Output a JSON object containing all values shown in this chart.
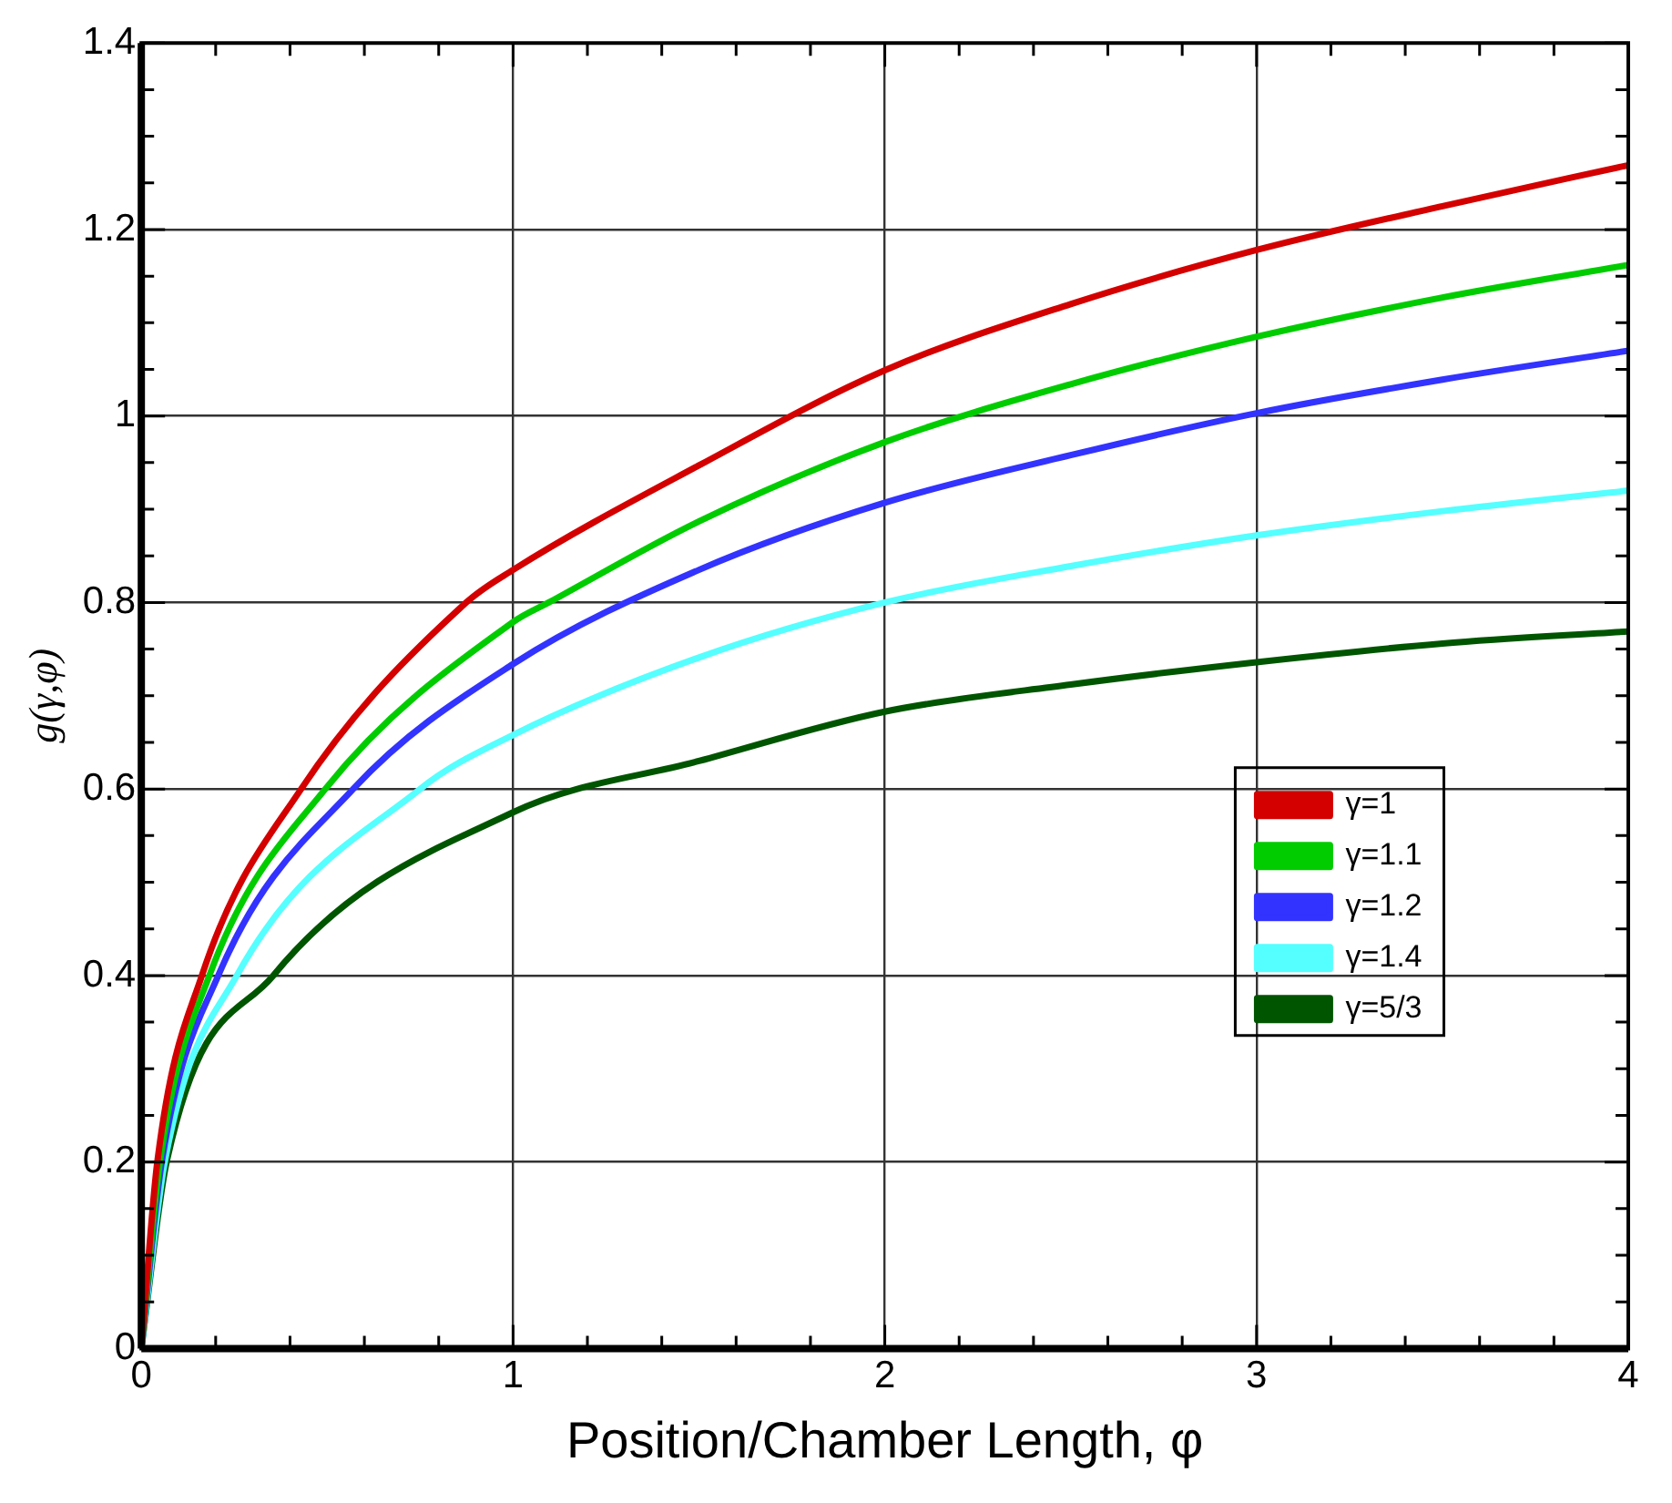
{
  "chart_data": {
    "type": "line",
    "xlabel": "Position/Chamber Length, φ",
    "ylabel": "g(γ,φ)",
    "xlim": [
      0,
      4
    ],
    "ylim": [
      0,
      1.4
    ],
    "xticks": [
      0,
      {
        "value": 0.2,
        "label": null
      },
      {
        "value": 0.4,
        "label": null
      },
      {
        "value": 0.6,
        "label": null
      },
      {
        "value": 0.8,
        "label": null
      },
      1,
      {
        "value": 1.2,
        "label": null
      },
      {
        "value": 1.4,
        "label": null
      },
      {
        "value": 1.6,
        "label": null
      },
      {
        "value": 1.8,
        "label": null
      },
      2,
      {
        "value": 2.2,
        "label": null
      },
      {
        "value": 2.4,
        "label": null
      },
      {
        "value": 2.6,
        "label": null
      },
      {
        "value": 2.8,
        "label": null
      },
      3,
      {
        "value": 3.2,
        "label": null
      },
      {
        "value": 3.4,
        "label": null
      },
      {
        "value": 3.6,
        "label": null
      },
      {
        "value": 3.8,
        "label": null
      },
      4
    ],
    "yticks": [
      0,
      {
        "value": 0.05,
        "label": null
      },
      {
        "value": 0.1,
        "label": null
      },
      {
        "value": 0.15,
        "label": null
      },
      0.2,
      {
        "value": 0.25,
        "label": null
      },
      {
        "value": 0.3,
        "label": null
      },
      {
        "value": 0.35,
        "label": null
      },
      0.4,
      {
        "value": 0.45,
        "label": null
      },
      {
        "value": 0.5,
        "label": null
      },
      {
        "value": 0.55,
        "label": null
      },
      0.6,
      {
        "value": 0.65,
        "label": null
      },
      {
        "value": 0.7,
        "label": null
      },
      {
        "value": 0.75,
        "label": null
      },
      0.8,
      {
        "value": 0.85,
        "label": null
      },
      {
        "value": 0.9,
        "label": null
      },
      {
        "value": 0.95,
        "label": null
      },
      1,
      {
        "value": 1.05,
        "label": null
      },
      {
        "value": 1.1,
        "label": null
      },
      {
        "value": 1.15,
        "label": null
      },
      1.2,
      {
        "value": 1.25,
        "label": null
      },
      {
        "value": 1.3,
        "label": null
      },
      {
        "value": 1.35,
        "label": null
      },
      1.4
    ],
    "grid": true,
    "legend": "bottom right",
    "marker": "none",
    "line_style": "solid",
    "series": [
      {
        "name": "γ=1",
        "color": "#d40000",
        "x": [
          0,
          0.043,
          0.163,
          0.43,
          0.874,
          1,
          1.5,
          2,
          2.5,
          3,
          3.5,
          4
        ],
        "values": [
          0,
          0.2,
          0.4,
          0.6,
          0.8,
          0.835,
          0.947,
          1.049,
          1.12,
          1.178,
          1.225,
          1.269
        ]
      },
      {
        "name": "γ=1.1",
        "color": "#00cc00",
        "x": [
          0,
          0.05,
          0.183,
          0.495,
          1,
          1.096,
          1.5,
          2,
          2.5,
          3,
          3.5,
          4
        ],
        "values": [
          0,
          0.2,
          0.4,
          0.6,
          0.779,
          0.8,
          0.887,
          0.972,
          1.034,
          1.085,
          1.127,
          1.162
        ]
      },
      {
        "name": "γ=1.2",
        "color": "#3333ff",
        "x": [
          0,
          0.055,
          0.207,
          0.57,
          1,
          1.5,
          2,
          2.5,
          3,
          3.5,
          4
        ],
        "values": [
          0,
          0.2,
          0.4,
          0.6,
          0.734,
          0.835,
          0.907,
          0.958,
          1.003,
          1.039,
          1.07
        ]
      },
      {
        "name": "γ=1.4",
        "color": "#55ffff",
        "x": [
          0,
          0.063,
          0.257,
          0.75,
          1,
          1.5,
          2,
          2.5,
          3,
          3.5,
          4
        ],
        "values": [
          0,
          0.2,
          0.4,
          0.6,
          0.658,
          0.741,
          0.8,
          0.839,
          0.872,
          0.898,
          0.92
        ]
      },
      {
        "name": "γ=5/3",
        "color": "#005500",
        "x": [
          0,
          0.068,
          0.355,
          1,
          1.5,
          2,
          2.5,
          3,
          3.5,
          4
        ],
        "values": [
          0,
          0.2,
          0.4,
          0.575,
          0.63,
          0.683,
          0.712,
          0.736,
          0.756,
          0.769
        ]
      }
    ]
  }
}
